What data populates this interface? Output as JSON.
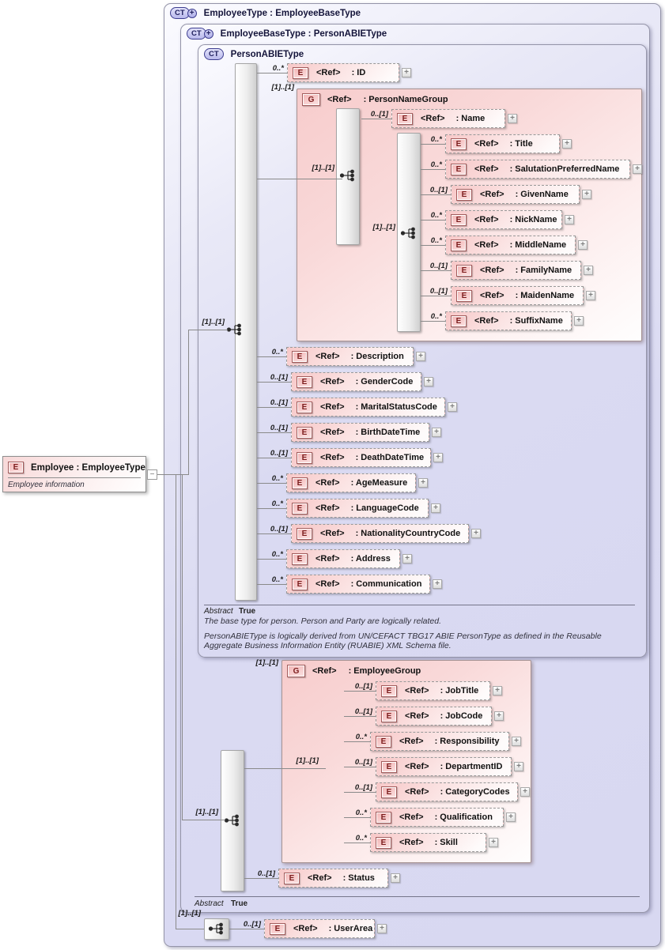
{
  "plus_glyph": "+",
  "collapse_glyph": "−",
  "employee_element": {
    "tag": "E",
    "title": "Employee : EmployeeType",
    "annotation": "Employee information"
  },
  "employee_type": {
    "badge": "CT",
    "title": "EmployeeType : EmployeeBaseType"
  },
  "employee_base_type": {
    "badge": "CT",
    "title": "EmployeeBaseType : PersonABIEType",
    "abstract_label": "Abstract",
    "abstract_value": "True"
  },
  "person_abie_type": {
    "badge": "CT",
    "title": "PersonABIEType",
    "abstract_label": "Abstract",
    "abstract_value": "True",
    "annotation_1": "The base type for person. Person and Party are logically related.",
    "annotation_2": "PersonABIEType is logically derived from UN/CEFACT TBG17 ABIE PersonType as defined in the Reusable Aggregate Business Information Entity (RUABIE) XML Schema file."
  },
  "person_name_group": {
    "tag": "G",
    "ref": "<Ref>",
    "label": ": PersonNameGroup",
    "card": "[1]..[1]",
    "seq_card_outer": "[1]..[1]",
    "seq_card_inner": "[1]..[1]"
  },
  "employee_group": {
    "tag": "G",
    "ref": "<Ref>",
    "label": ": EmployeeGroup",
    "card": "[1]..[1]",
    "seq_card": "[1]..[1]"
  },
  "sequence_cards": {
    "person_abie": "[1]..[1]",
    "employee_base": "[1]..[1]",
    "employee_type": "[1]..[1]"
  },
  "rows": {
    "person_abie_children": [
      {
        "tag": "E",
        "ref": "<Ref>",
        "label": ": ID",
        "card": "0..*"
      },
      {
        "tag": "E",
        "ref": "<Ref>",
        "label": ": Description",
        "card": "0..*"
      },
      {
        "tag": "E",
        "ref": "<Ref>",
        "label": ": GenderCode",
        "card": "0..[1]"
      },
      {
        "tag": "E",
        "ref": "<Ref>",
        "label": ": MaritalStatusCode",
        "card": "0..[1]"
      },
      {
        "tag": "E",
        "ref": "<Ref>",
        "label": ": BirthDateTime",
        "card": "0..[1]"
      },
      {
        "tag": "E",
        "ref": "<Ref>",
        "label": ": DeathDateTime",
        "card": "0..[1]"
      },
      {
        "tag": "E",
        "ref": "<Ref>",
        "label": ": AgeMeasure",
        "card": "0..*"
      },
      {
        "tag": "E",
        "ref": "<Ref>",
        "label": ": LanguageCode",
        "card": "0..*"
      },
      {
        "tag": "E",
        "ref": "<Ref>",
        "label": ": NationalityCountryCode",
        "card": "0..[1]"
      },
      {
        "tag": "E",
        "ref": "<Ref>",
        "label": ": Address",
        "card": "0..*"
      },
      {
        "tag": "E",
        "ref": "<Ref>",
        "label": ": Communication",
        "card": "0..*"
      }
    ],
    "person_name_group_name": [
      {
        "tag": "E",
        "ref": "<Ref>",
        "label": ": Name",
        "card": "0..[1]"
      }
    ],
    "person_name_group_children": [
      {
        "tag": "E",
        "ref": "<Ref>",
        "label": ": Title",
        "card": "0..*"
      },
      {
        "tag": "E",
        "ref": "<Ref>",
        "label": ": SalutationPreferredName",
        "card": "0..*"
      },
      {
        "tag": "E",
        "ref": "<Ref>",
        "label": ": GivenName",
        "card": "0..[1]"
      },
      {
        "tag": "E",
        "ref": "<Ref>",
        "label": ": NickName",
        "card": "0..*"
      },
      {
        "tag": "E",
        "ref": "<Ref>",
        "label": ": MiddleName",
        "card": "0..*"
      },
      {
        "tag": "E",
        "ref": "<Ref>",
        "label": ": FamilyName",
        "card": "0..[1]"
      },
      {
        "tag": "E",
        "ref": "<Ref>",
        "label": ": MaidenName",
        "card": "0..[1]"
      },
      {
        "tag": "E",
        "ref": "<Ref>",
        "label": ": SuffixName",
        "card": "0..*"
      }
    ],
    "employee_group_children": [
      {
        "tag": "E",
        "ref": "<Ref>",
        "label": ": JobTitle",
        "card": "0..[1]"
      },
      {
        "tag": "E",
        "ref": "<Ref>",
        "label": ": JobCode",
        "card": "0..[1]"
      },
      {
        "tag": "E",
        "ref": "<Ref>",
        "label": ": Responsibility",
        "card": "0..*"
      },
      {
        "tag": "E",
        "ref": "<Ref>",
        "label": ": DepartmentID",
        "card": "0..[1]"
      },
      {
        "tag": "E",
        "ref": "<Ref>",
        "label": ": CategoryCodes",
        "card": "0..[1]"
      },
      {
        "tag": "E",
        "ref": "<Ref>",
        "label": ": Qualification",
        "card": "0..*"
      },
      {
        "tag": "E",
        "ref": "<Ref>",
        "label": ": Skill",
        "card": "0..*"
      }
    ],
    "employee_base_children": [
      {
        "tag": "E",
        "ref": "<Ref>",
        "label": ": Status",
        "card": "0..[1]"
      }
    ],
    "employee_type_children": [
      {
        "tag": "E",
        "ref": "<Ref>",
        "label": ": UserArea",
        "card": "0..[1]"
      }
    ]
  }
}
